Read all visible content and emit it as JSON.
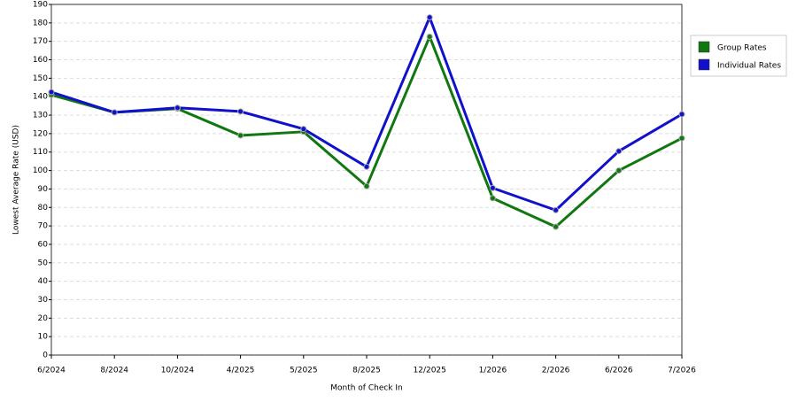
{
  "chart_data": {
    "type": "line",
    "x_label": "Month of Check In",
    "y_label": "Lowest Average Rate (USD)",
    "categories": [
      "6/2024",
      "8/2024",
      "10/2024",
      "4/2025",
      "5/2025",
      "8/2025",
      "12/2025",
      "1/2026",
      "2/2026",
      "6/2026",
      "7/2026"
    ],
    "series": [
      {
        "name": "Group Rates",
        "color": "#117711",
        "values": [
          141,
          131.5,
          133.5,
          119,
          121,
          91.5,
          172.5,
          85,
          69.5,
          100,
          117.5
        ]
      },
      {
        "name": "Individual Rates",
        "color": "#1111cc",
        "values": [
          142.5,
          131.5,
          134,
          132,
          122.5,
          102,
          183,
          90.5,
          78.5,
          110.5,
          130.5
        ]
      }
    ],
    "ylim": [
      0,
      190
    ],
    "yticks": [
      0,
      10,
      20,
      30,
      40,
      50,
      60,
      70,
      80,
      90,
      100,
      110,
      120,
      130,
      140,
      150,
      160,
      170,
      180,
      190
    ],
    "grid": true,
    "legend": "right"
  }
}
